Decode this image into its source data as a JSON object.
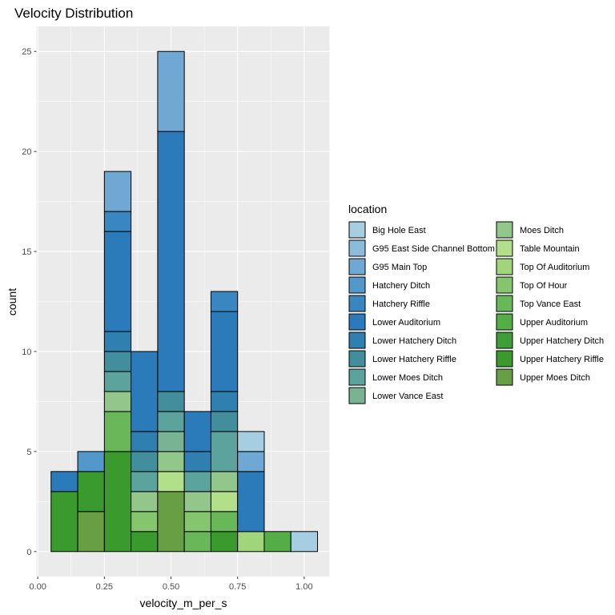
{
  "chart_data": {
    "type": "bar",
    "title": "Velocity Distribution",
    "xlabel": "velocity_m_per_s",
    "ylabel": "count",
    "xlim": [
      -0.005,
      1.095
    ],
    "ylim": [
      -1.25,
      26.25
    ],
    "x_ticks": [
      0.0,
      0.25,
      0.5,
      0.75,
      1.0
    ],
    "x_tick_labels": [
      "0.00",
      "0.25",
      "0.50",
      "0.75",
      "1.00"
    ],
    "y_ticks": [
      0,
      5,
      10,
      15,
      20,
      25
    ],
    "y_tick_labels": [
      "0",
      "5",
      "10",
      "15",
      "20",
      "25"
    ],
    "grid": true,
    "bin_width": 0.1,
    "legend_title": "location",
    "legend_position": "right",
    "series": [
      {
        "name": "Big Hole East",
        "color": "#a6cee3"
      },
      {
        "name": "G95 East Side Channel Bottom",
        "color": "#8bbcdb"
      },
      {
        "name": "G95 Main Top",
        "color": "#6ea8d3"
      },
      {
        "name": "Hatchery Ditch",
        "color": "#5298cb"
      },
      {
        "name": "Hatchery Riffle",
        "color": "#3a86c1"
      },
      {
        "name": "Lower Auditorium",
        "color": "#2b7bba"
      },
      {
        "name": "Lower Hatchery Ditch",
        "color": "#2f80b0"
      },
      {
        "name": "Lower Hatchery Riffle",
        "color": "#428e9d"
      },
      {
        "name": "Lower Moes Ditch",
        "color": "#5ba39c"
      },
      {
        "name": "Lower Vance East",
        "color": "#78b493"
      },
      {
        "name": "Moes Ditch",
        "color": "#93c68b"
      },
      {
        "name": "Table Mountain",
        "color": "#b2df8a"
      },
      {
        "name": "Top Of Auditorium",
        "color": "#a0d57c"
      },
      {
        "name": "Top Of Hour",
        "color": "#85c56e"
      },
      {
        "name": "Top Vance East",
        "color": "#68b85a"
      },
      {
        "name": "Upper Auditorium",
        "color": "#54ad46"
      },
      {
        "name": "Upper Hatchery Ditch",
        "color": "#3f9e3a"
      },
      {
        "name": "Upper Hatchery Riffle",
        "color": "#3a9a2e"
      },
      {
        "name": "Upper Moes Ditch",
        "color": "#689f45"
      }
    ],
    "bins": [
      {
        "x": 0.1,
        "segments": [
          {
            "series": "Upper Hatchery Riffle",
            "count": 3
          },
          {
            "series": "Lower Auditorium",
            "count": 1
          }
        ]
      },
      {
        "x": 0.2,
        "segments": [
          {
            "series": "Upper Moes Ditch",
            "count": 2
          },
          {
            "series": "Upper Hatchery Riffle",
            "count": 2
          },
          {
            "series": "Hatchery Ditch",
            "count": 1
          }
        ]
      },
      {
        "x": 0.3,
        "segments": [
          {
            "series": "Upper Hatchery Riffle",
            "count": 5
          },
          {
            "series": "Top Vance East",
            "count": 2
          },
          {
            "series": "Moes Ditch",
            "count": 1
          },
          {
            "series": "Lower Moes Ditch",
            "count": 1
          },
          {
            "series": "Lower Hatchery Riffle",
            "count": 1
          },
          {
            "series": "Lower Hatchery Ditch",
            "count": 1
          },
          {
            "series": "Lower Auditorium",
            "count": 5
          },
          {
            "series": "Hatchery Riffle",
            "count": 1
          },
          {
            "series": "G95 Main Top",
            "count": 2
          }
        ]
      },
      {
        "x": 0.4,
        "segments": [
          {
            "series": "Upper Hatchery Riffle",
            "count": 1
          },
          {
            "series": "Top Of Hour",
            "count": 1
          },
          {
            "series": "Moes Ditch",
            "count": 1
          },
          {
            "series": "Lower Moes Ditch",
            "count": 1
          },
          {
            "series": "Lower Hatchery Riffle",
            "count": 1
          },
          {
            "series": "Lower Hatchery Ditch",
            "count": 1
          },
          {
            "series": "Lower Auditorium",
            "count": 4
          }
        ]
      },
      {
        "x": 0.5,
        "segments": [
          {
            "series": "Upper Moes Ditch",
            "count": 3
          },
          {
            "series": "Table Mountain",
            "count": 1
          },
          {
            "series": "Moes Ditch",
            "count": 1
          },
          {
            "series": "Lower Vance East",
            "count": 1
          },
          {
            "series": "Lower Moes Ditch",
            "count": 1
          },
          {
            "series": "Lower Hatchery Riffle",
            "count": 1
          },
          {
            "series": "Lower Auditorium",
            "count": 13
          },
          {
            "series": "G95 Main Top",
            "count": 4
          }
        ]
      },
      {
        "x": 0.6,
        "segments": [
          {
            "series": "Top Vance East",
            "count": 1
          },
          {
            "series": "Top Of Hour",
            "count": 1
          },
          {
            "series": "Moes Ditch",
            "count": 1
          },
          {
            "series": "Lower Moes Ditch",
            "count": 1
          },
          {
            "series": "Lower Hatchery Ditch",
            "count": 1
          },
          {
            "series": "Lower Auditorium",
            "count": 2
          }
        ]
      },
      {
        "x": 0.7,
        "segments": [
          {
            "series": "Upper Hatchery Riffle",
            "count": 1
          },
          {
            "series": "Top Vance East",
            "count": 1
          },
          {
            "series": "Table Mountain",
            "count": 1
          },
          {
            "series": "Moes Ditch",
            "count": 1
          },
          {
            "series": "Lower Moes Ditch",
            "count": 2
          },
          {
            "series": "Lower Hatchery Riffle",
            "count": 1
          },
          {
            "series": "Lower Hatchery Ditch",
            "count": 1
          },
          {
            "series": "Lower Auditorium",
            "count": 4
          },
          {
            "series": "Hatchery Riffle",
            "count": 1
          }
        ]
      },
      {
        "x": 0.8,
        "segments": [
          {
            "series": "Top Of Auditorium",
            "count": 1
          },
          {
            "series": "Lower Auditorium",
            "count": 3
          },
          {
            "series": "G95 Main Top",
            "count": 1
          },
          {
            "series": "Big Hole East",
            "count": 1
          }
        ]
      },
      {
        "x": 0.9,
        "segments": [
          {
            "series": "Upper Auditorium",
            "count": 1
          }
        ]
      },
      {
        "x": 1.0,
        "segments": [
          {
            "series": "Big Hole East",
            "count": 1
          }
        ]
      }
    ]
  }
}
